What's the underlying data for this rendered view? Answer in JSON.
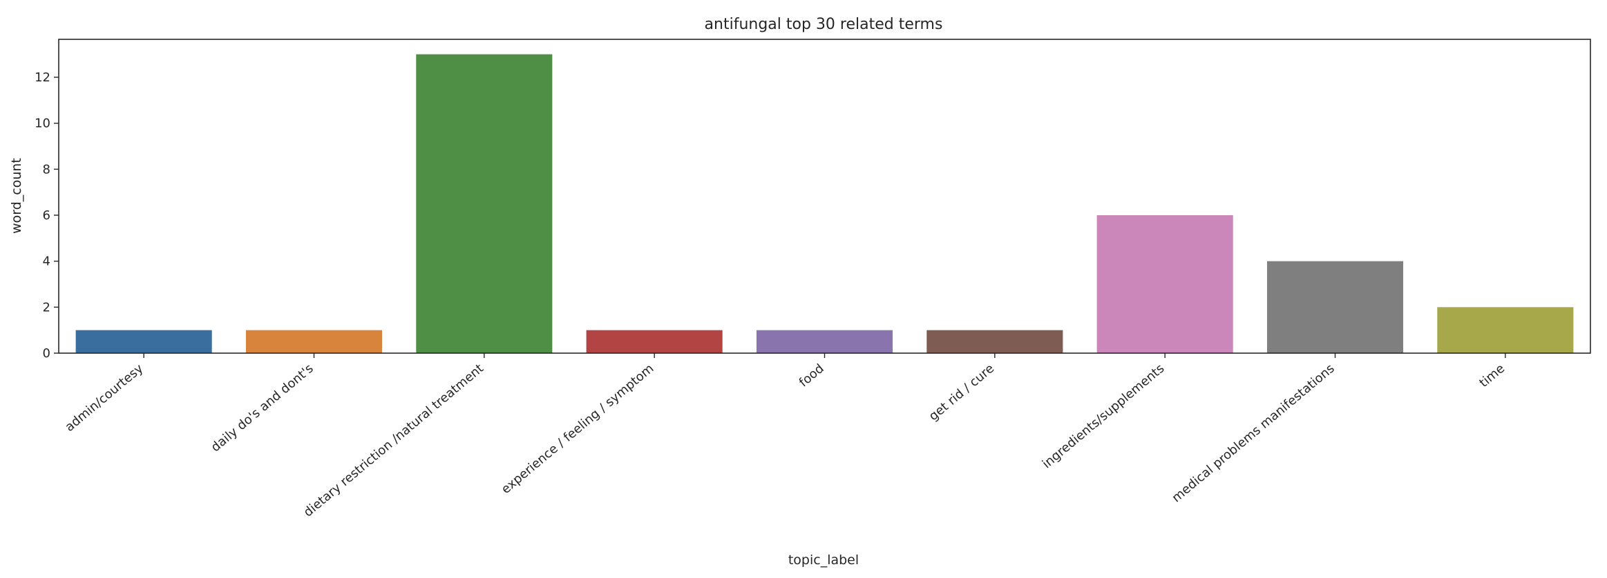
{
  "chart_data": {
    "type": "bar",
    "title": "antifungal top 30 related terms",
    "xlabel": "topic_label",
    "ylabel": "word_count",
    "categories": [
      "admin/courtesy",
      "daily do's and dont's",
      "dietary restriction /natural treatment",
      "experience / feeling / symptom",
      "food",
      "get rid / cure",
      "ingredients/supplements",
      "medical problems manifestations",
      "time"
    ],
    "values": [
      1,
      1,
      13,
      1,
      1,
      1,
      6,
      4,
      2
    ],
    "colors": [
      "#3a6e9e",
      "#d8843c",
      "#4f8f45",
      "#b34444",
      "#8a74ad",
      "#7f5c53",
      "#cb87b9",
      "#7f7f7f",
      "#a6a84a"
    ],
    "yticks": [
      "0",
      "2",
      "4",
      "6",
      "8",
      "10",
      "12"
    ],
    "ylim": [
      0,
      13.65
    ],
    "grid": false,
    "legend": false
  }
}
